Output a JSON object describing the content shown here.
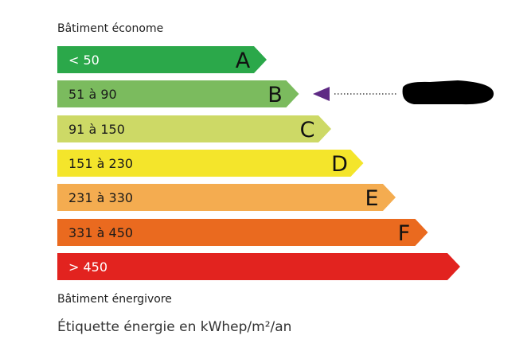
{
  "header": {
    "top_label": "Bâtiment économe",
    "bottom_label": "Bâtiment énergivore"
  },
  "caption": "Étiquette énergie en kWhep/m²/an",
  "classes": [
    {
      "range": "< 50",
      "letter": "A",
      "color": "#2ba84a",
      "text_color": "#ffffff"
    },
    {
      "range": "51 à 90",
      "letter": "B",
      "color": "#7bbb5e",
      "text_color": "#1a1a1a"
    },
    {
      "range": "91 à 150",
      "letter": "C",
      "color": "#cdd966",
      "text_color": "#1a1a1a"
    },
    {
      "range": "151 à 230",
      "letter": "D",
      "color": "#f4e52b",
      "text_color": "#1a1a1a"
    },
    {
      "range": "231 à 330",
      "letter": "E",
      "color": "#f4ac50",
      "text_color": "#1a1a1a"
    },
    {
      "range": "331 à 450",
      "letter": "F",
      "color": "#ea6a1f",
      "text_color": "#1a1a1a"
    },
    {
      "range": "> 450",
      "letter": "",
      "color": "#e2231f",
      "text_color": "#ffffff"
    }
  ],
  "indicator": {
    "class": "B",
    "color": "#5e2a84",
    "value_redacted": true
  }
}
